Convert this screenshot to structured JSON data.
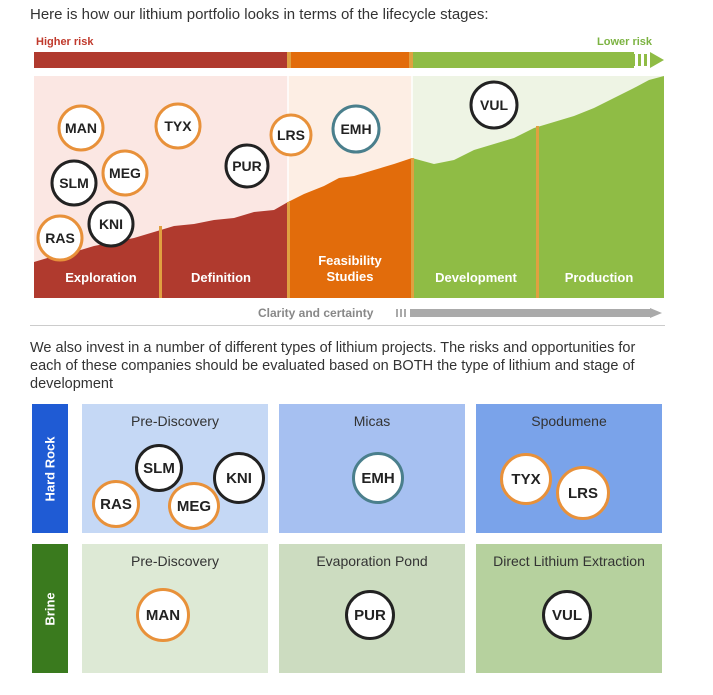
{
  "intro_text": "Here is how our lithium portfolio looks in terms of the lifecycle stages:",
  "risk": {
    "higher": "Higher risk",
    "lower": "Lower risk"
  },
  "stages": [
    "Exploration",
    "Definition",
    "Feasibility\nStudies",
    "Development",
    "Production"
  ],
  "clarity_label": "Clarity and certainty",
  "colors": {
    "red": "#b03a2e",
    "orange": "#e26c0b",
    "green": "#8fbc45",
    "gold": "#e0a040",
    "orange_ring": "#e8913a",
    "black_ring": "#222222",
    "teal_ring": "#4a7f8c"
  },
  "lifecycle_companies": [
    {
      "ticker": "MAN",
      "ring": "orange"
    },
    {
      "ticker": "TYX",
      "ring": "orange"
    },
    {
      "ticker": "SLM",
      "ring": "black"
    },
    {
      "ticker": "MEG",
      "ring": "orange"
    },
    {
      "ticker": "PUR",
      "ring": "black"
    },
    {
      "ticker": "LRS",
      "ring": "orange"
    },
    {
      "ticker": "EMH",
      "ring": "teal"
    },
    {
      "ticker": "VUL",
      "ring": "black"
    },
    {
      "ticker": "KNI",
      "ring": "black"
    },
    {
      "ticker": "RAS",
      "ring": "orange"
    }
  ],
  "paragraph": "We also invest in a number of different types of lithium projects. The risks and opportunities for each of these companies should be evaluated based on BOTH the type of lithium and stage of development",
  "matrix": {
    "rows": [
      {
        "label": "Hard Rock",
        "cells": [
          {
            "title": "Pre-Discovery",
            "companies": [
              "SLM",
              "KNI",
              "RAS",
              "MEG"
            ]
          },
          {
            "title": "Micas",
            "companies": [
              "EMH"
            ]
          },
          {
            "title": "Spodumene",
            "companies": [
              "TYX",
              "LRS"
            ]
          }
        ]
      },
      {
        "label": "Brine",
        "cells": [
          {
            "title": "Pre-Discovery",
            "companies": [
              "MAN"
            ]
          },
          {
            "title": "Evaporation Pond",
            "companies": [
              "PUR"
            ]
          },
          {
            "title": "Direct Lithium Extraction",
            "companies": [
              "VUL"
            ]
          }
        ]
      }
    ]
  }
}
